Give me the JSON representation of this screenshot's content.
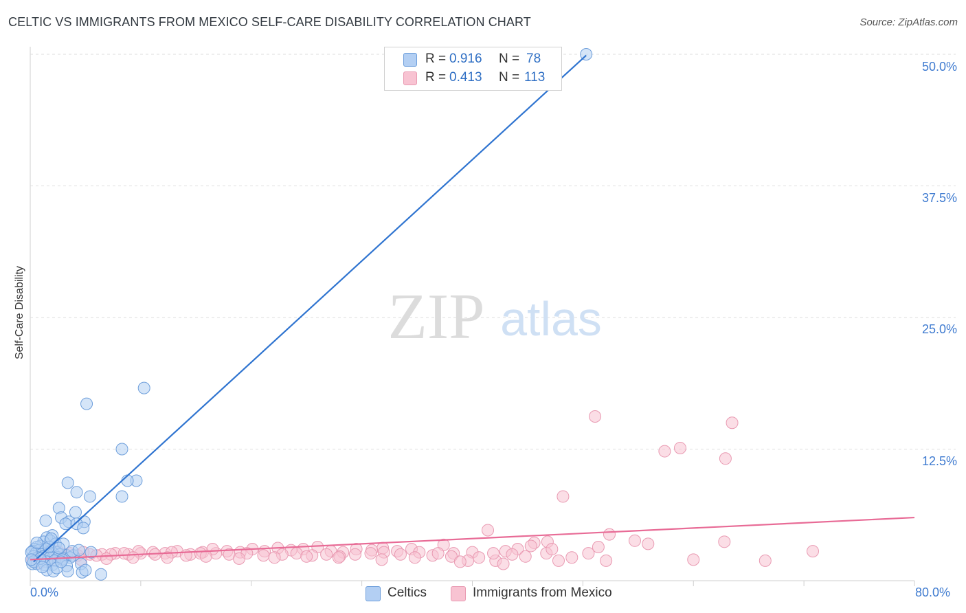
{
  "header": {
    "title": "CELTIC VS IMMIGRANTS FROM MEXICO SELF-CARE DISABILITY CORRELATION CHART",
    "source": "Source: ZipAtlas.com"
  },
  "watermark": {
    "zip": "ZIP",
    "atlas": "atlas"
  },
  "legend": {
    "rows": [
      {
        "r_label": "R = ",
        "r_value": "0.916",
        "n_label": "N = ",
        "n_value": "78",
        "color": "#b3cff3"
      },
      {
        "r_label": "R = ",
        "r_value": "0.413",
        "n_label": "N = ",
        "n_value": "113",
        "color": "#f8c3d2"
      }
    ]
  },
  "chart_data": {
    "type": "scatter",
    "title": "CELTIC VS IMMIGRANTS FROM MEXICO SELF-CARE DISABILITY CORRELATION CHART",
    "xlabel": "",
    "ylabel": "Self-Care Disability",
    "xlim": [
      0,
      80
    ],
    "ylim": [
      0,
      52
    ],
    "x_tick_labels": [
      "0.0%",
      "80.0%"
    ],
    "y_ticks": [
      {
        "value": 12.5,
        "label": "12.5%"
      },
      {
        "value": 25.0,
        "label": "25.0%"
      },
      {
        "value": 37.5,
        "label": "37.5%"
      },
      {
        "value": 50.0,
        "label": "50.0%"
      }
    ],
    "grid": true,
    "legend_position": "top-center",
    "series": [
      {
        "name": "Celtics",
        "color": "#6d9edb",
        "fill": "#b3cff3",
        "line_color": "#2f74d0",
        "trend": {
          "x0": 0.3,
          "y0": 1.8,
          "x1": 50.3,
          "y1": 49.9
        },
        "points": [
          [
            50.3,
            50.0
          ],
          [
            10.3,
            18.3
          ],
          [
            5.1,
            16.8
          ],
          [
            8.3,
            12.5
          ],
          [
            9.6,
            9.5
          ],
          [
            8.8,
            9.5
          ],
          [
            3.4,
            9.3
          ],
          [
            4.2,
            8.4
          ],
          [
            5.4,
            8.0
          ],
          [
            8.3,
            8.0
          ],
          [
            2.6,
            6.9
          ],
          [
            4.1,
            6.5
          ],
          [
            1.4,
            5.7
          ],
          [
            2.8,
            6.0
          ],
          [
            3.5,
            5.6
          ],
          [
            4.9,
            5.6
          ],
          [
            3.2,
            5.4
          ],
          [
            4.2,
            5.4
          ],
          [
            4.8,
            5.0
          ],
          [
            2.0,
            4.3
          ],
          [
            1.5,
            4.1
          ],
          [
            1.8,
            3.8
          ],
          [
            2.3,
            3.5
          ],
          [
            3.0,
            3.5
          ],
          [
            1.2,
            3.7
          ],
          [
            0.9,
            3.3
          ],
          [
            0.6,
            3.2
          ],
          [
            0.4,
            3.0
          ],
          [
            0.2,
            2.8
          ],
          [
            0.8,
            2.9
          ],
          [
            1.4,
            3.0
          ],
          [
            1.9,
            2.8
          ],
          [
            2.4,
            2.7
          ],
          [
            0.5,
            2.6
          ],
          [
            1.0,
            2.5
          ],
          [
            1.6,
            2.5
          ],
          [
            2.1,
            2.6
          ],
          [
            2.7,
            2.5
          ],
          [
            3.3,
            2.4
          ],
          [
            3.9,
            2.4
          ],
          [
            0.3,
            2.3
          ],
          [
            0.7,
            2.2
          ],
          [
            1.2,
            2.3
          ],
          [
            1.8,
            2.2
          ],
          [
            2.5,
            2.2
          ],
          [
            3.0,
            2.1
          ],
          [
            3.6,
            2.2
          ],
          [
            0.4,
            1.9
          ],
          [
            1.0,
            1.9
          ],
          [
            1.5,
            1.8
          ],
          [
            2.2,
            1.9
          ],
          [
            2.9,
            2.0
          ],
          [
            0.2,
            1.6
          ],
          [
            0.6,
            1.6
          ],
          [
            1.3,
            1.5
          ],
          [
            2.0,
            1.5
          ],
          [
            3.3,
            1.4
          ],
          [
            4.6,
            1.6
          ],
          [
            1.5,
            1.0
          ],
          [
            2.1,
            0.9
          ],
          [
            3.4,
            0.9
          ],
          [
            4.7,
            0.8
          ],
          [
            5.0,
            1.0
          ],
          [
            6.4,
            0.6
          ],
          [
            0.1,
            2.7
          ],
          [
            0.9,
            2.1
          ],
          [
            1.7,
            3.2
          ],
          [
            2.6,
            3.1
          ],
          [
            3.8,
            2.8
          ],
          [
            5.5,
            2.7
          ],
          [
            0.3,
            1.8
          ],
          [
            1.1,
            1.3
          ],
          [
            2.4,
            1.2
          ],
          [
            0.6,
            3.6
          ],
          [
            1.9,
            4.0
          ],
          [
            0.1,
            2.0
          ],
          [
            4.4,
            2.9
          ],
          [
            2.8,
            1.8
          ]
        ]
      },
      {
        "name": "Immigrants from Mexico",
        "color": "#e99ab2",
        "fill": "#f8c3d2",
        "line_color": "#e86b96",
        "trend": {
          "x0": 0.0,
          "y0": 2.0,
          "x1": 80.0,
          "y1": 6.0
        },
        "points": [
          [
            51.1,
            15.6
          ],
          [
            63.5,
            15.0
          ],
          [
            57.4,
            12.3
          ],
          [
            58.8,
            12.6
          ],
          [
            62.9,
            11.6
          ],
          [
            48.2,
            8.0
          ],
          [
            41.4,
            4.8
          ],
          [
            52.4,
            4.4
          ],
          [
            54.7,
            3.8
          ],
          [
            55.9,
            3.5
          ],
          [
            62.8,
            3.7
          ],
          [
            37.4,
            3.4
          ],
          [
            45.6,
            3.6
          ],
          [
            46.8,
            3.7
          ],
          [
            51.4,
            3.2
          ],
          [
            45.3,
            3.3
          ],
          [
            44.1,
            3.0
          ],
          [
            43.0,
            2.8
          ],
          [
            40.0,
            2.7
          ],
          [
            38.3,
            2.6
          ],
          [
            36.4,
            2.4
          ],
          [
            34.5,
            3.0
          ],
          [
            33.2,
            2.8
          ],
          [
            31.9,
            3.1
          ],
          [
            30.9,
            2.9
          ],
          [
            29.5,
            3.0
          ],
          [
            28.3,
            2.7
          ],
          [
            27.2,
            2.8
          ],
          [
            26.0,
            3.2
          ],
          [
            24.7,
            3.0
          ],
          [
            23.6,
            2.9
          ],
          [
            22.4,
            3.1
          ],
          [
            21.2,
            2.8
          ],
          [
            20.1,
            3.0
          ],
          [
            19.0,
            2.7
          ],
          [
            17.8,
            2.8
          ],
          [
            16.8,
            2.6
          ],
          [
            15.6,
            2.7
          ],
          [
            14.5,
            2.5
          ],
          [
            13.3,
            2.8
          ],
          [
            12.2,
            2.6
          ],
          [
            11.1,
            2.7
          ],
          [
            10.0,
            2.6
          ],
          [
            8.9,
            2.5
          ],
          [
            7.7,
            2.6
          ],
          [
            6.5,
            2.5
          ],
          [
            5.4,
            2.5
          ],
          [
            4.3,
            2.4
          ],
          [
            3.2,
            2.5
          ],
          [
            2.1,
            2.3
          ],
          [
            1.2,
            2.3
          ],
          [
            0.5,
            2.1
          ],
          [
            0.2,
            2.0
          ],
          [
            0.8,
            2.6
          ],
          [
            1.6,
            2.7
          ],
          [
            2.5,
            2.8
          ],
          [
            3.6,
            2.6
          ],
          [
            4.8,
            2.7
          ],
          [
            6.0,
            2.4
          ],
          [
            7.3,
            2.5
          ],
          [
            8.5,
            2.6
          ],
          [
            9.8,
            2.8
          ],
          [
            11.3,
            2.5
          ],
          [
            12.8,
            2.7
          ],
          [
            14.1,
            2.4
          ],
          [
            15.4,
            2.6
          ],
          [
            16.5,
            3.0
          ],
          [
            18.0,
            2.5
          ],
          [
            19.6,
            2.6
          ],
          [
            21.1,
            2.4
          ],
          [
            22.8,
            2.5
          ],
          [
            24.1,
            2.6
          ],
          [
            25.5,
            2.4
          ],
          [
            26.8,
            2.5
          ],
          [
            28.0,
            2.3
          ],
          [
            29.4,
            2.5
          ],
          [
            30.8,
            2.6
          ],
          [
            32.0,
            2.7
          ],
          [
            33.5,
            2.5
          ],
          [
            35.2,
            2.7
          ],
          [
            36.9,
            2.6
          ],
          [
            38.1,
            2.3
          ],
          [
            39.6,
            1.9
          ],
          [
            40.6,
            2.2
          ],
          [
            42.1,
            1.9
          ],
          [
            43.6,
            2.5
          ],
          [
            44.8,
            2.3
          ],
          [
            46.7,
            2.6
          ],
          [
            47.8,
            1.9
          ],
          [
            49.0,
            2.2
          ],
          [
            50.5,
            2.6
          ],
          [
            52.1,
            1.9
          ],
          [
            60.0,
            2.0
          ],
          [
            66.5,
            1.9
          ],
          [
            70.8,
            2.8
          ],
          [
            38.9,
            1.8
          ],
          [
            42.8,
            1.6
          ],
          [
            34.8,
            2.2
          ],
          [
            31.8,
            2.0
          ],
          [
            27.9,
            2.2
          ],
          [
            25.0,
            2.3
          ],
          [
            22.1,
            2.2
          ],
          [
            18.9,
            2.1
          ],
          [
            15.9,
            2.3
          ],
          [
            12.4,
            2.2
          ],
          [
            9.3,
            2.2
          ],
          [
            6.9,
            2.1
          ],
          [
            4.6,
            2.0
          ],
          [
            2.9,
            2.0
          ],
          [
            1.7,
            1.9
          ],
          [
            0.9,
            1.7
          ],
          [
            41.9,
            2.6
          ],
          [
            47.2,
            3.0
          ]
        ]
      }
    ]
  },
  "bottom_legend": {
    "items": [
      {
        "label": "Celtics",
        "color": "#b3cff3"
      },
      {
        "label": "Immigrants from Mexico",
        "color": "#f8c3d2"
      }
    ]
  }
}
